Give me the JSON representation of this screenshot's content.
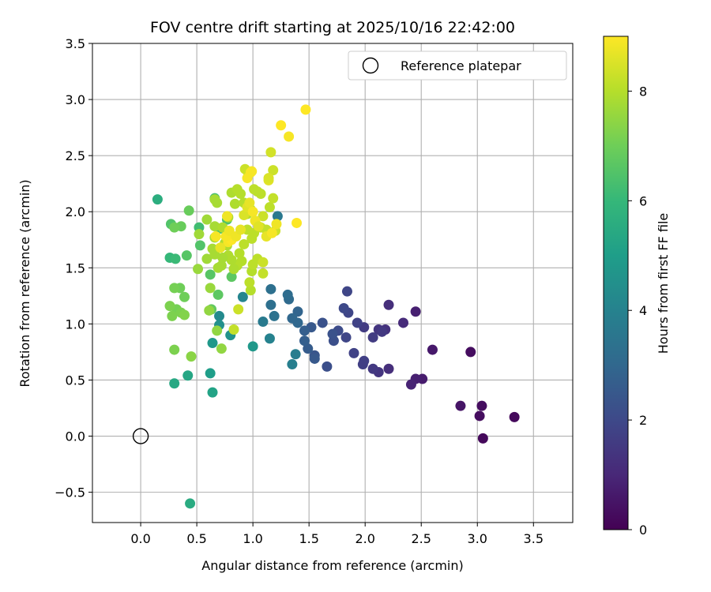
{
  "chart_data": {
    "type": "scatter",
    "title": "FOV centre drift starting at 2025/10/16 22:42:00",
    "xlabel": "Angular distance from reference (arcmin)",
    "ylabel": "Rotation from reference (arcmin)",
    "xlim": [
      -0.43,
      3.85
    ],
    "ylim": [
      -0.77,
      3.5
    ],
    "xticks": [
      0.0,
      0.5,
      1.0,
      1.5,
      2.0,
      2.5,
      3.0,
      3.5
    ],
    "xtick_labels": [
      "0.0",
      "0.5",
      "1.0",
      "1.5",
      "2.0",
      "2.5",
      "3.0",
      "3.5"
    ],
    "yticks": [
      -0.5,
      0.0,
      0.5,
      1.0,
      1.5,
      2.0,
      2.5,
      3.0,
      3.5
    ],
    "ytick_labels": [
      "−0.5",
      "0.0",
      "0.5",
      "1.0",
      "1.5",
      "2.0",
      "2.5",
      "3.0",
      "3.5"
    ],
    "grid": true,
    "legend": {
      "label": "Reference platepar",
      "position": "top-right"
    },
    "reference_point": {
      "x": 0.0,
      "y": 0.0
    },
    "colorbar": {
      "label": "Hours from first FF file",
      "range": [
        0,
        9
      ],
      "ticks": [
        0,
        2,
        4,
        6,
        8
      ],
      "tick_labels": [
        "0",
        "2",
        "4",
        "6",
        "8"
      ],
      "colormap": "viridis",
      "colors": [
        "#440154",
        "#482878",
        "#3e4989",
        "#31688e",
        "#26828e",
        "#1f9e89",
        "#35b779",
        "#6ece58",
        "#b5de2b",
        "#fde725"
      ]
    },
    "points": [
      [
        3.33,
        0.17,
        0.2
      ],
      [
        3.05,
        -0.02,
        0.2
      ],
      [
        3.04,
        0.27,
        0.3
      ],
      [
        3.02,
        0.18,
        0.3
      ],
      [
        2.94,
        0.75,
        0.3
      ],
      [
        2.85,
        0.27,
        0.5
      ],
      [
        2.6,
        0.77,
        0.6
      ],
      [
        2.51,
        0.51,
        0.7
      ],
      [
        2.45,
        0.51,
        0.8
      ],
      [
        2.41,
        0.46,
        0.9
      ],
      [
        2.45,
        1.11,
        0.8
      ],
      [
        2.34,
        1.01,
        1.1
      ],
      [
        2.21,
        1.17,
        1.2
      ],
      [
        2.21,
        0.6,
        1.2
      ],
      [
        2.18,
        0.95,
        1.3
      ],
      [
        2.12,
        0.95,
        1.4
      ],
      [
        2.12,
        0.57,
        1.4
      ],
      [
        2.15,
        0.93,
        1.5
      ],
      [
        2.07,
        0.6,
        1.5
      ],
      [
        2.07,
        0.88,
        1.6
      ],
      [
        1.99,
        0.97,
        1.6
      ],
      [
        1.98,
        0.64,
        1.7
      ],
      [
        1.99,
        0.67,
        1.7
      ],
      [
        1.93,
        1.01,
        1.8
      ],
      [
        1.9,
        0.74,
        1.8
      ],
      [
        1.83,
        0.88,
        1.9
      ],
      [
        1.84,
        1.29,
        1.9
      ],
      [
        1.85,
        1.1,
        1.9
      ],
      [
        1.81,
        1.14,
        2.0
      ],
      [
        1.76,
        0.94,
        2.1
      ],
      [
        1.72,
        0.85,
        2.2
      ],
      [
        1.71,
        0.91,
        2.3
      ],
      [
        1.66,
        0.62,
        2.2
      ],
      [
        1.62,
        1.01,
        2.3
      ],
      [
        1.55,
        0.72,
        2.4
      ],
      [
        1.55,
        0.69,
        2.5
      ],
      [
        1.52,
        0.97,
        2.5
      ],
      [
        1.49,
        0.78,
        2.6
      ],
      [
        1.46,
        0.85,
        2.7
      ],
      [
        1.46,
        0.94,
        2.7
      ],
      [
        1.4,
        1.11,
        2.9
      ],
      [
        1.4,
        1.01,
        3.0
      ],
      [
        1.35,
        1.05,
        3.0
      ],
      [
        1.32,
        1.22,
        3.1
      ],
      [
        1.31,
        1.26,
        3.2
      ],
      [
        1.16,
        1.17,
        3.3
      ],
      [
        1.16,
        1.31,
        3.3
      ],
      [
        1.19,
        1.07,
        3.4
      ],
      [
        1.22,
        1.96,
        3.6
      ],
      [
        1.09,
        1.02,
        3.7
      ],
      [
        1.38,
        0.73,
        3.8
      ],
      [
        1.35,
        0.64,
        3.9
      ],
      [
        1.15,
        0.87,
        4.0
      ],
      [
        0.91,
        1.24,
        4.1
      ],
      [
        0.7,
        1.07,
        4.3
      ],
      [
        0.7,
        0.99,
        4.5
      ],
      [
        0.8,
        0.9,
        4.6
      ],
      [
        0.64,
        0.83,
        4.8
      ],
      [
        1.0,
        0.8,
        4.8
      ],
      [
        0.62,
        0.56,
        5.0
      ],
      [
        0.64,
        0.39,
        5.2
      ],
      [
        0.42,
        0.54,
        5.3
      ],
      [
        0.3,
        0.47,
        5.4
      ],
      [
        0.44,
        -0.6,
        5.5
      ],
      [
        0.15,
        2.11,
        5.6
      ],
      [
        0.26,
        1.59,
        6.0
      ],
      [
        0.31,
        1.58,
        6.1
      ],
      [
        0.52,
        1.86,
        6.2
      ],
      [
        0.66,
        2.12,
        6.3
      ],
      [
        0.71,
        1.85,
        6.4
      ],
      [
        0.77,
        1.93,
        6.4
      ],
      [
        0.53,
        1.7,
        6.5
      ],
      [
        0.62,
        1.44,
        6.6
      ],
      [
        0.81,
        1.42,
        6.7
      ],
      [
        0.69,
        1.26,
        6.7
      ],
      [
        0.63,
        1.13,
        6.8
      ],
      [
        0.41,
        1.61,
        6.6
      ],
      [
        0.27,
        1.89,
        6.5
      ],
      [
        0.43,
        2.01,
        6.9
      ],
      [
        0.36,
        1.87,
        6.9
      ],
      [
        0.3,
        1.86,
        7.0
      ],
      [
        0.39,
        1.24,
        7.0
      ],
      [
        0.35,
        1.32,
        7.0
      ],
      [
        0.3,
        1.32,
        7.1
      ],
      [
        0.32,
        1.13,
        7.1
      ],
      [
        0.26,
        1.16,
        7.2
      ],
      [
        0.28,
        1.07,
        7.2
      ],
      [
        0.36,
        1.1,
        7.2
      ],
      [
        0.39,
        1.08,
        7.3
      ],
      [
        0.3,
        0.77,
        7.2
      ],
      [
        0.45,
        0.71,
        7.4
      ],
      [
        0.72,
        0.78,
        7.5
      ],
      [
        0.68,
        0.94,
        7.5
      ],
      [
        0.61,
        1.12,
        7.5
      ],
      [
        0.62,
        1.32,
        7.6
      ],
      [
        0.51,
        1.49,
        7.6
      ],
      [
        0.59,
        1.58,
        7.7
      ],
      [
        0.52,
        1.8,
        7.7
      ],
      [
        0.59,
        1.93,
        7.7
      ],
      [
        0.66,
        1.87,
        7.8
      ],
      [
        0.66,
        2.11,
        7.8
      ],
      [
        0.68,
        2.08,
        7.8
      ],
      [
        0.73,
        1.86,
        7.9
      ],
      [
        0.78,
        1.95,
        7.9
      ],
      [
        0.81,
        2.17,
        7.9
      ],
      [
        0.84,
        2.07,
        7.9
      ],
      [
        0.86,
        2.2,
        8.0
      ],
      [
        0.89,
        2.16,
        8.0
      ],
      [
        0.92,
        2.08,
        8.0
      ],
      [
        0.95,
        1.98,
        8.0
      ],
      [
        0.96,
        2.34,
        8.1
      ],
      [
        0.98,
        2.02,
        8.1
      ],
      [
        1.01,
        2.2,
        8.1
      ],
      [
        1.04,
        2.18,
        8.1
      ],
      [
        1.07,
        2.16,
        8.1
      ],
      [
        1.15,
        2.04,
        8.1
      ],
      [
        1.18,
        2.12,
        8.2
      ],
      [
        1.18,
        2.37,
        8.3
      ],
      [
        1.16,
        2.53,
        8.4
      ],
      [
        0.93,
        2.38,
        8.3
      ],
      [
        1.14,
        2.28,
        8.6
      ],
      [
        1.14,
        2.3,
        8.5
      ],
      [
        1.2,
        1.83,
        8.3
      ],
      [
        1.12,
        1.84,
        8.2
      ],
      [
        1.09,
        1.96,
        8.3
      ],
      [
        1.07,
        1.86,
        8.2
      ],
      [
        1.01,
        1.81,
        8.1
      ],
      [
        0.99,
        1.76,
        8.1
      ],
      [
        0.95,
        1.84,
        8.1
      ],
      [
        0.92,
        1.71,
        8.1
      ],
      [
        0.88,
        1.63,
        8.0
      ],
      [
        0.9,
        1.56,
        8.0
      ],
      [
        0.86,
        1.52,
        8.0
      ],
      [
        0.83,
        1.49,
        7.9
      ],
      [
        0.81,
        1.57,
        7.9
      ],
      [
        0.78,
        1.61,
        7.9
      ],
      [
        0.77,
        1.7,
        7.9
      ],
      [
        0.75,
        1.72,
        7.9
      ],
      [
        0.73,
        1.59,
        7.8
      ],
      [
        0.72,
        1.52,
        7.8
      ],
      [
        0.69,
        1.5,
        7.8
      ],
      [
        0.66,
        1.62,
        7.8
      ],
      [
        0.64,
        1.67,
        7.8
      ],
      [
        0.66,
        1.77,
        7.9
      ],
      [
        0.98,
        1.3,
        8.0
      ],
      [
        0.97,
        1.37,
        8.1
      ],
      [
        0.99,
        1.47,
        8.0
      ],
      [
        1.0,
        1.53,
        8.1
      ],
      [
        1.04,
        1.58,
        8.1
      ],
      [
        1.09,
        1.55,
        8.3
      ],
      [
        1.09,
        1.45,
        8.2
      ],
      [
        0.87,
        1.13,
        8.3
      ],
      [
        0.83,
        0.95,
        8.2
      ],
      [
        0.92,
        1.97,
        8.5
      ],
      [
        0.95,
        2.04,
        8.6
      ],
      [
        0.97,
        2.08,
        8.7
      ],
      [
        1.0,
        2.0,
        8.9
      ],
      [
        1.02,
        1.92,
        8.8
      ],
      [
        1.05,
        1.87,
        8.6
      ],
      [
        1.12,
        1.78,
        8.7
      ],
      [
        1.17,
        1.81,
        8.9
      ],
      [
        1.21,
        1.89,
        8.8
      ],
      [
        1.39,
        1.9,
        9.0
      ],
      [
        1.32,
        2.67,
        8.9
      ],
      [
        1.25,
        2.77,
        9.0
      ],
      [
        1.47,
        2.91,
        9.0
      ],
      [
        0.98,
        2.35,
        8.9
      ],
      [
        0.99,
        2.36,
        8.9
      ],
      [
        0.95,
        2.3,
        8.9
      ],
      [
        0.77,
        1.96,
        8.8
      ],
      [
        0.78,
        1.73,
        8.9
      ],
      [
        0.81,
        1.75,
        9.0
      ],
      [
        0.76,
        1.78,
        8.9
      ],
      [
        0.79,
        1.83,
        8.8
      ],
      [
        0.85,
        1.78,
        8.8
      ],
      [
        0.89,
        1.84,
        8.7
      ],
      [
        0.67,
        1.78,
        8.9
      ],
      [
        0.71,
        1.68,
        8.7
      ]
    ]
  }
}
